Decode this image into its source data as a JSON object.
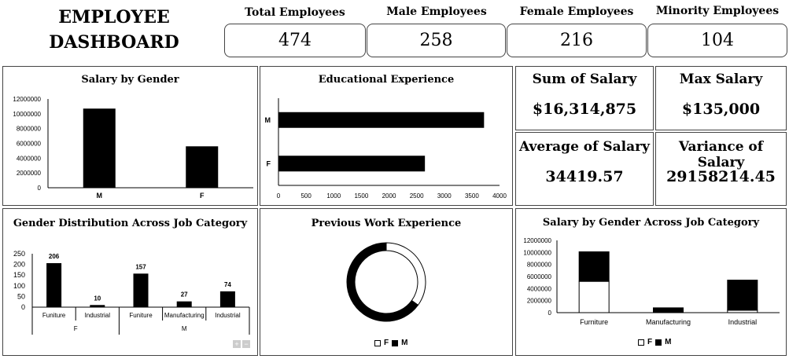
{
  "header": {
    "title_line1": "EMPLOYEE",
    "title_line2": "DASHBOARD"
  },
  "kpis": [
    {
      "label": "Total Employees",
      "value": "474"
    },
    {
      "label": "Male Employees",
      "value": "258"
    },
    {
      "label": "Female Employees",
      "value": "216"
    },
    {
      "label": "Minority Employees",
      "value": "104"
    }
  ],
  "stats": [
    {
      "label": "Sum of  Salary",
      "value": "$16,314,875"
    },
    {
      "label": "Max  Salary",
      "value": "$135,000"
    },
    {
      "label": "Average of  Salary",
      "value": "34419.57"
    },
    {
      "label": "Variance of  Salary",
      "value": "29158214.45"
    }
  ],
  "colors": {
    "bar": "#000000",
    "female": "#ffffff",
    "male": "#000000",
    "border": "#444444"
  },
  "chart_data": [
    {
      "id": "salary_by_gender",
      "type": "bar",
      "title": "Salary by Gender",
      "categories": [
        "M",
        "F"
      ],
      "values": [
        10700000,
        5600000
      ],
      "ylim": [
        0,
        12000000
      ],
      "yticks": [
        "12000000",
        "10000000",
        "8000000",
        "6000000",
        "4000000",
        "2000000",
        "0"
      ]
    },
    {
      "id": "educational_experience",
      "type": "bar",
      "orientation": "horizontal",
      "title": "Educational Experience",
      "categories": [
        "M",
        "F"
      ],
      "values": [
        3720,
        2650
      ],
      "xlim": [
        0,
        4000
      ],
      "xticks": [
        "0",
        "500",
        "1000",
        "1500",
        "2000",
        "2500",
        "3000",
        "3500",
        "4000"
      ]
    },
    {
      "id": "gender_job_category",
      "type": "bar",
      "title": "Gender Distribution Across Job Category",
      "categories": [
        "Funiture",
        "Industrial",
        "Funiture",
        "Manufacturing",
        "Industrial"
      ],
      "groups": [
        "F",
        "M"
      ],
      "values": [
        206,
        10,
        157,
        27,
        74
      ],
      "data_labels": [
        "206",
        "10",
        "157",
        "27",
        "74"
      ],
      "ylim": [
        0,
        250
      ],
      "yticks": [
        "250",
        "200",
        "150",
        "100",
        "50",
        "0"
      ]
    },
    {
      "id": "previous_work_experience",
      "type": "pie",
      "style": "doughnut",
      "title": "Previous Work Experience",
      "categories": [
        "F",
        "M"
      ],
      "values": [
        35,
        65
      ],
      "legend": [
        "F",
        "M"
      ]
    },
    {
      "id": "salary_gender_job_category",
      "type": "bar",
      "stacked": true,
      "title": "Salary by Gender Across Job Category",
      "categories": [
        "Furniture",
        "Manufacturing",
        "Industrial"
      ],
      "series": [
        {
          "name": "F",
          "values": [
            5200000,
            0,
            400000
          ]
        },
        {
          "name": "M",
          "values": [
            4900000,
            800000,
            5000000
          ]
        }
      ],
      "ylim": [
        0,
        12000000
      ],
      "yticks": [
        "12000000",
        "10000000",
        "8000000",
        "6000000",
        "4000000",
        "2000000",
        "0"
      ],
      "legend": [
        "F",
        "M"
      ]
    }
  ]
}
